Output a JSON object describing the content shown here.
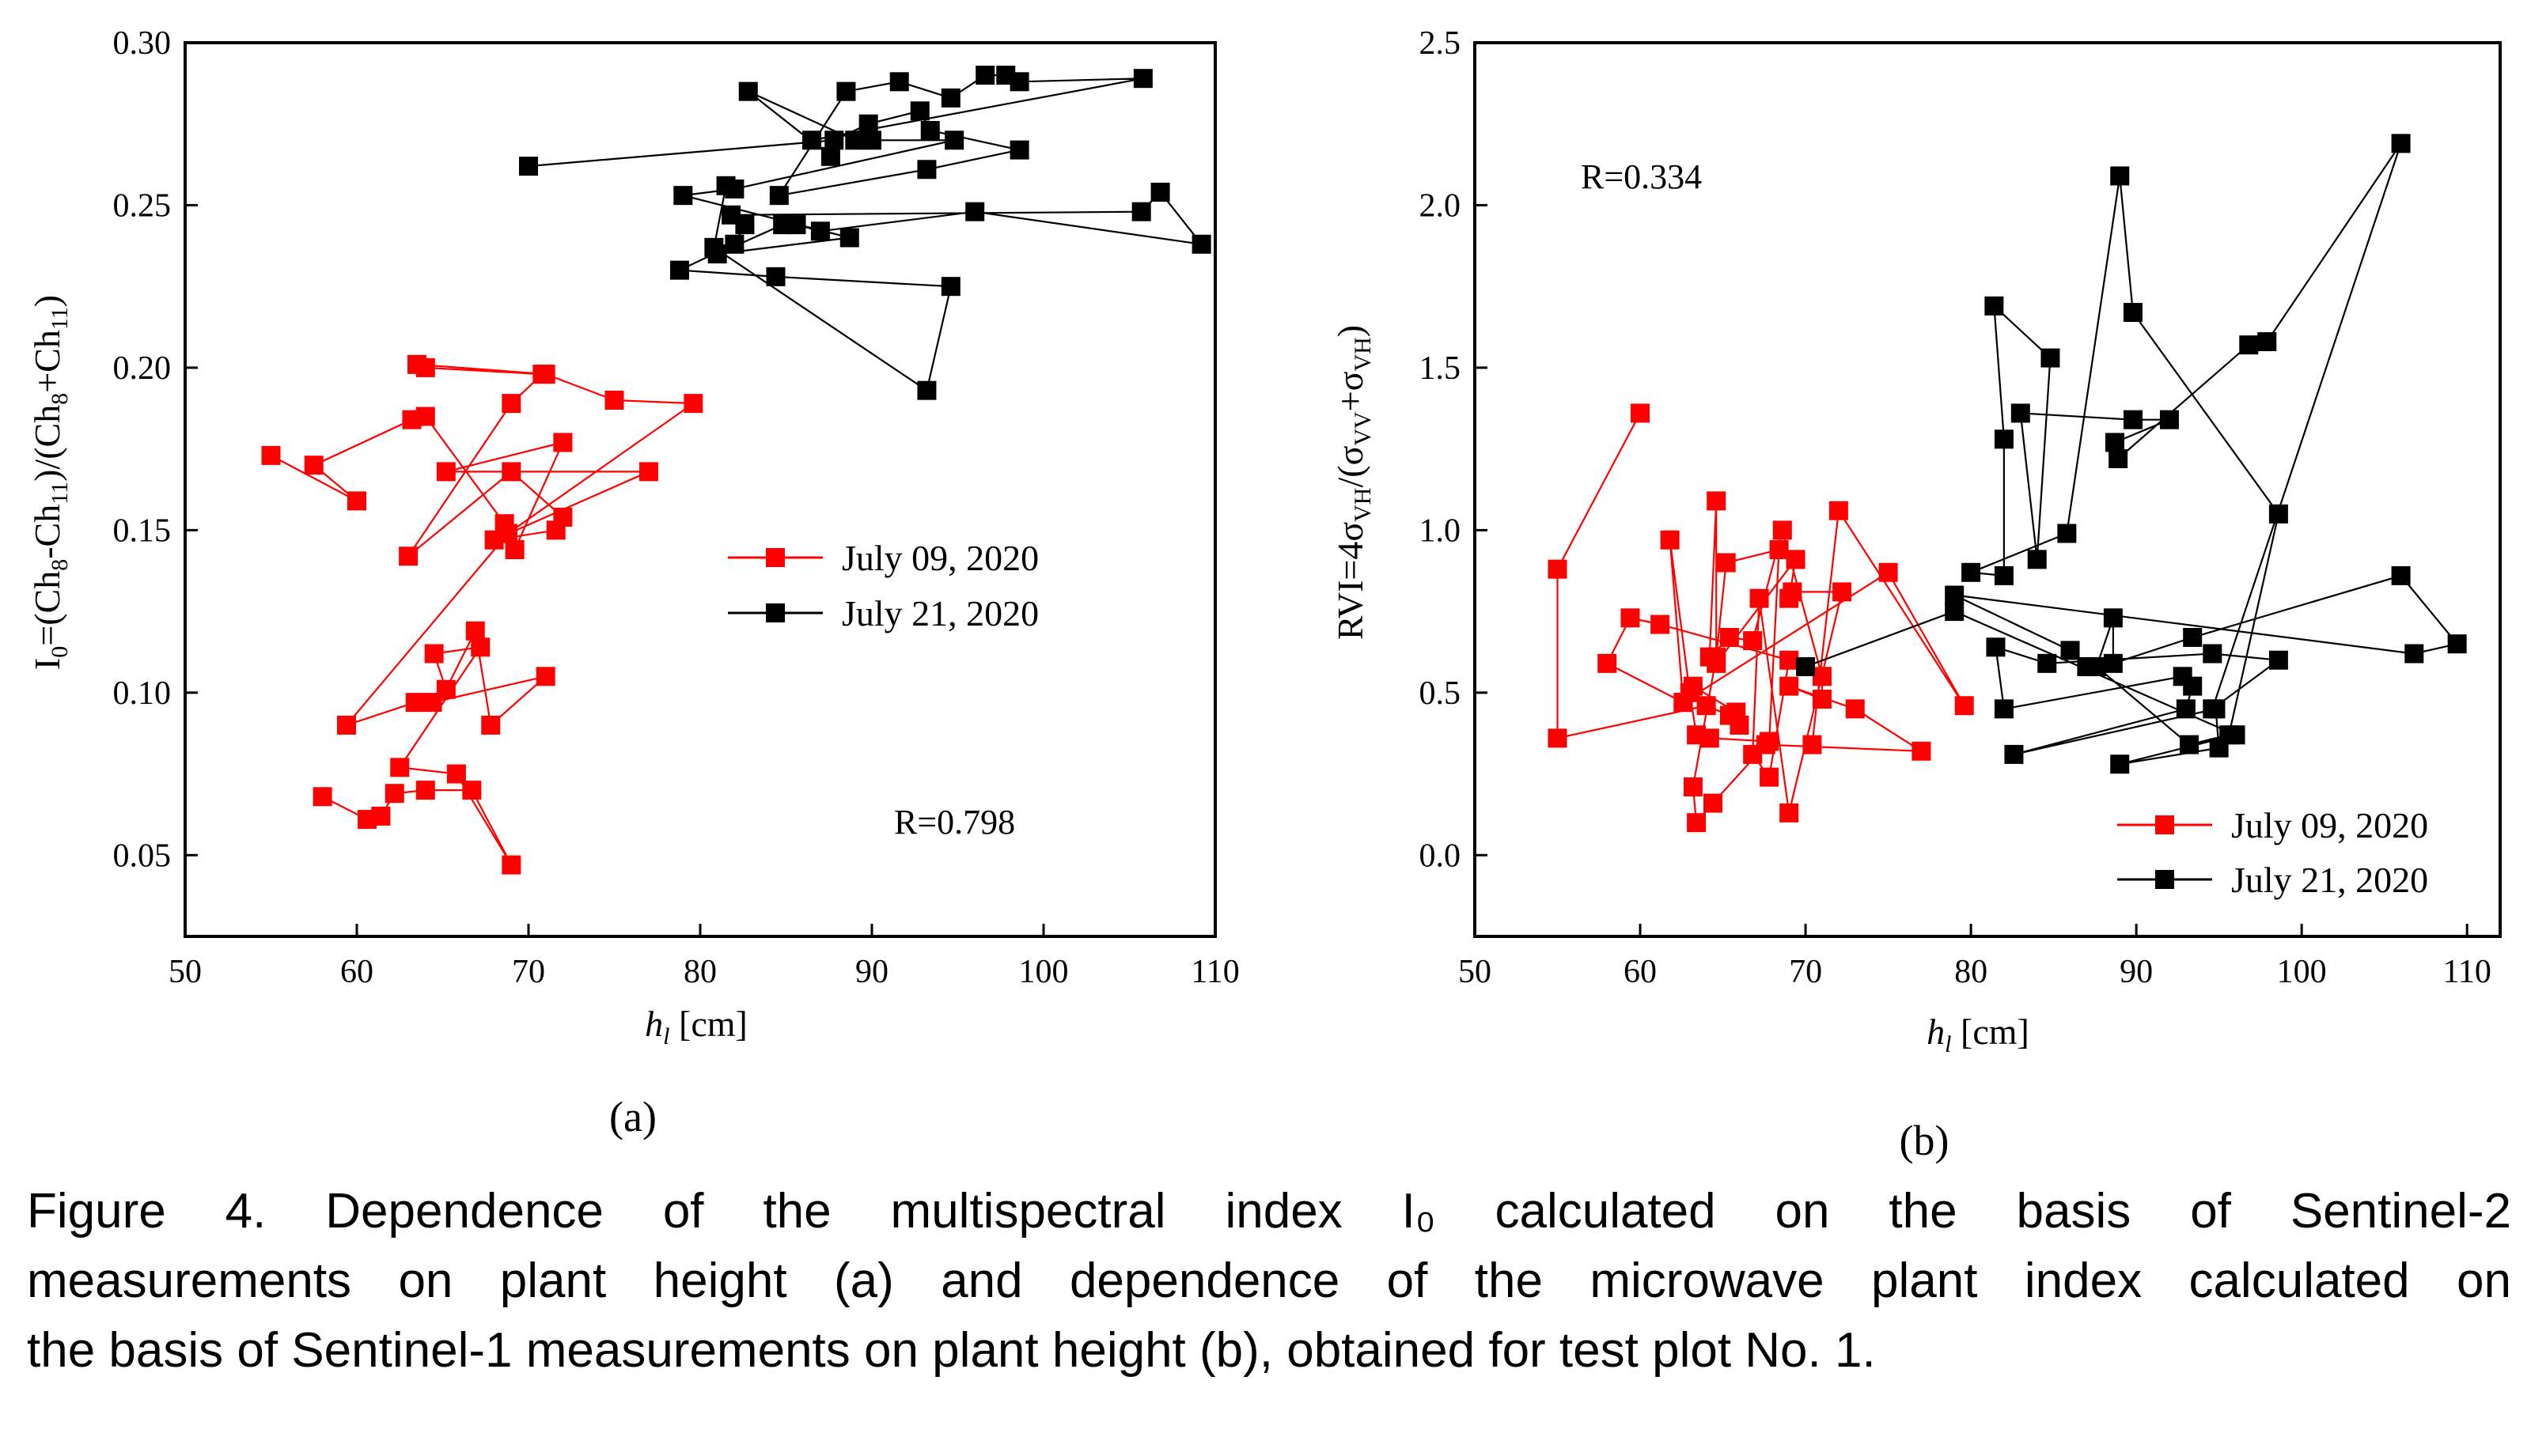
{
  "figure_caption": {
    "lines": [
      "Figure 4. Dependence of the multispectral index I₀ calculated on the basis of Sentinel-2",
      "measurements on plant height (a) and dependence of the microwave plant index calculated on",
      "the basis of Sentinel-1 measurements on plant height (b), obtained for test plot No. 1."
    ]
  },
  "colors": {
    "series_1": "#ff0000",
    "series_2": "#000000"
  },
  "chart_data": [
    {
      "panel": "(a)",
      "type": "line",
      "markers": "square",
      "xlabel": "h_l [cm]",
      "ylabel": "I_0=(Ch_8-Ch_11)/(Ch_8+Ch_11)",
      "xlim": [
        50,
        110
      ],
      "ylim": [
        0.025,
        0.3
      ],
      "xticks": [
        50,
        60,
        70,
        80,
        90,
        100,
        110
      ],
      "yticks": [
        0.05,
        0.1,
        0.15,
        0.2,
        0.25,
        0.3
      ],
      "xtick_labels": [
        "50",
        "60",
        "70",
        "80",
        "90",
        "100",
        "110"
      ],
      "ytick_labels": [
        "0.05",
        "0.10",
        "0.15",
        "0.20",
        "0.25",
        "0.30"
      ],
      "annotation": "R=0.798",
      "legend_position": "middle-right",
      "series": [
        {
          "name": "July 09, 2020",
          "color": "#ff0000",
          "points": [
            [
              55.0,
              0.173
            ],
            [
              60.0,
              0.159
            ],
            [
              57.5,
              0.17
            ],
            [
              63.2,
              0.184
            ],
            [
              64.0,
              0.185
            ],
            [
              68.6,
              0.152
            ],
            [
              69.2,
              0.144
            ],
            [
              72.0,
              0.177
            ],
            [
              65.2,
              0.168
            ],
            [
              77.0,
              0.168
            ],
            [
              68.0,
              0.147
            ],
            [
              71.6,
              0.15
            ],
            [
              72.0,
              0.154
            ],
            [
              69.0,
              0.168
            ],
            [
              63.0,
              0.142
            ],
            [
              69.0,
              0.189
            ],
            [
              70.8,
              0.198
            ],
            [
              64.0,
              0.2
            ],
            [
              63.5,
              0.201
            ],
            [
              71.0,
              0.198
            ],
            [
              75.0,
              0.19
            ],
            [
              79.6,
              0.189
            ],
            [
              68.8,
              0.149
            ],
            [
              59.4,
              0.09
            ],
            [
              63.4,
              0.097
            ],
            [
              64.4,
              0.097
            ],
            [
              71.0,
              0.105
            ],
            [
              67.8,
              0.09
            ],
            [
              66.9,
              0.119
            ],
            [
              65.2,
              0.101
            ],
            [
              64.5,
              0.112
            ],
            [
              67.2,
              0.114
            ],
            [
              62.5,
              0.077
            ],
            [
              65.8,
              0.075
            ],
            [
              69.0,
              0.047
            ],
            [
              66.7,
              0.07
            ],
            [
              64.0,
              0.07
            ],
            [
              62.2,
              0.069
            ],
            [
              61.4,
              0.062
            ],
            [
              60.6,
              0.061
            ],
            [
              58.0,
              0.068
            ]
          ]
        },
        {
          "name": "July 21, 2020",
          "color": "#000000",
          "points": [
            [
              70.0,
              0.262
            ],
            [
              87.8,
              0.27
            ],
            [
              89.8,
              0.275
            ],
            [
              92.8,
              0.279
            ],
            [
              93.4,
              0.273
            ],
            [
              98.6,
              0.267
            ],
            [
              93.2,
              0.261
            ],
            [
              84.6,
              0.253
            ],
            [
              88.5,
              0.285
            ],
            [
              91.6,
              0.288
            ],
            [
              94.6,
              0.283
            ],
            [
              96.6,
              0.29
            ],
            [
              97.8,
              0.29
            ],
            [
              98.6,
              0.288
            ],
            [
              105.8,
              0.289
            ],
            [
              86.5,
              0.27
            ],
            [
              87.6,
              0.265
            ],
            [
              82.8,
              0.285
            ],
            [
              89.0,
              0.27
            ],
            [
              90.0,
              0.27
            ],
            [
              94.8,
              0.27
            ],
            [
              82.0,
              0.255
            ],
            [
              79.0,
              0.253
            ],
            [
              88.7,
              0.24
            ],
            [
              81.0,
              0.235
            ],
            [
              84.8,
              0.244
            ],
            [
              85.6,
              0.244
            ],
            [
              87.0,
              0.242
            ],
            [
              96.0,
              0.248
            ],
            [
              109.2,
              0.238
            ],
            [
              106.8,
              0.254
            ],
            [
              105.7,
              0.248
            ],
            [
              81.8,
              0.247
            ],
            [
              82.6,
              0.244
            ],
            [
              82.0,
              0.238
            ],
            [
              78.8,
              0.23
            ],
            [
              84.4,
              0.228
            ],
            [
              94.6,
              0.225
            ],
            [
              93.2,
              0.193
            ],
            [
              80.8,
              0.237
            ],
            [
              81.5,
              0.256
            ]
          ]
        }
      ]
    },
    {
      "panel": "(b)",
      "type": "line",
      "markers": "square",
      "xlabel": "h_l [cm]",
      "ylabel": "RVI=4σ_VH/(σ_VV+σ_VH)",
      "xlim": [
        50,
        112
      ],
      "ylim": [
        -0.25,
        2.5
      ],
      "xticks": [
        50,
        60,
        70,
        80,
        90,
        100,
        110
      ],
      "yticks": [
        0.0,
        0.5,
        1.0,
        1.5,
        2.0,
        2.5
      ],
      "xtick_labels": [
        "50",
        "60",
        "70",
        "80",
        "90",
        "100",
        "110"
      ],
      "ytick_labels": [
        "0.0",
        "0.5",
        "1.0",
        "1.5",
        "2.0",
        "2.5"
      ],
      "annotation": "R=0.334",
      "legend_position": "bottom-right",
      "series": [
        {
          "name": "July 09, 2020",
          "color": "#ff0000",
          "points": [
            [
              60.0,
              1.36
            ],
            [
              55.0,
              0.88
            ],
            [
              55.0,
              0.36
            ],
            [
              64.0,
              0.46
            ],
            [
              65.4,
              0.43
            ],
            [
              66.0,
              0.4
            ],
            [
              65.8,
              0.44
            ],
            [
              63.2,
              0.52
            ],
            [
              62.6,
              0.47
            ],
            [
              61.8,
              0.97
            ],
            [
              63.0,
              0.5
            ],
            [
              63.4,
              0.37
            ],
            [
              64.2,
              0.36
            ],
            [
              67.8,
              0.35
            ],
            [
              68.4,
              0.94
            ],
            [
              65.2,
              0.9
            ],
            [
              64.6,
              0.61
            ],
            [
              63.2,
              0.21
            ],
            [
              63.4,
              0.1
            ],
            [
              64.4,
              0.16
            ],
            [
              67.6,
              0.34
            ],
            [
              77.0,
              0.32
            ],
            [
              73.0,
              0.45
            ],
            [
              69.0,
              0.52
            ],
            [
              71.0,
              0.48
            ],
            [
              71.0,
              0.55
            ],
            [
              68.6,
              1.0
            ],
            [
              66.8,
              0.66
            ],
            [
              65.4,
              0.67
            ],
            [
              64.2,
              0.61
            ],
            [
              64.6,
              1.09
            ],
            [
              64.6,
              0.59
            ],
            [
              69.4,
              0.91
            ],
            [
              69.0,
              0.79
            ],
            [
              69.2,
              0.81
            ],
            [
              72.2,
              0.81
            ],
            [
              69.0,
              0.13
            ],
            [
              67.2,
              0.79
            ],
            [
              66.8,
              0.31
            ],
            [
              67.8,
              0.24
            ],
            [
              69.0,
              0.6
            ],
            [
              61.2,
              0.71
            ],
            [
              59.4,
              0.73
            ],
            [
              58.0,
              0.59
            ],
            [
              62.6,
              0.47
            ],
            [
              75.0,
              0.87
            ],
            [
              79.6,
              0.46
            ],
            [
              72.0,
              1.06
            ],
            [
              70.4,
              0.34
            ]
          ]
        },
        {
          "name": "July 21, 2020",
          "color": "#000000",
          "points": [
            [
              70.0,
              0.58
            ],
            [
              79.0,
              0.75
            ],
            [
              96.0,
              0.37
            ],
            [
              89.0,
              0.28
            ],
            [
              95.0,
              0.33
            ],
            [
              94.8,
              0.45
            ],
            [
              82.6,
              0.31
            ],
            [
              93.0,
              0.45
            ],
            [
              93.4,
              0.52
            ],
            [
              92.8,
              0.55
            ],
            [
              82.0,
              0.45
            ],
            [
              81.5,
              0.64
            ],
            [
              84.6,
              0.59
            ],
            [
              94.6,
              0.62
            ],
            [
              98.6,
              0.6
            ],
            [
              94.6,
              0.45
            ],
            [
              106.0,
              2.19
            ],
            [
              97.9,
              1.58
            ],
            [
              96.8,
              1.57
            ],
            [
              88.9,
              1.22
            ],
            [
              88.7,
              1.27
            ],
            [
              92.0,
              1.34
            ],
            [
              89.8,
              1.34
            ],
            [
              83.0,
              1.36
            ],
            [
              84.0,
              0.91
            ],
            [
              84.8,
              1.53
            ],
            [
              81.4,
              1.69
            ],
            [
              82.0,
              1.28
            ],
            [
              82.0,
              0.86
            ],
            [
              80.0,
              0.87
            ],
            [
              85.8,
              0.99
            ],
            [
              89.0,
              2.09
            ],
            [
              89.8,
              1.67
            ],
            [
              98.6,
              1.05
            ],
            [
              95.6,
              0.37
            ],
            [
              93.2,
              0.34
            ],
            [
              87.6,
              0.58
            ],
            [
              88.6,
              0.73
            ],
            [
              88.6,
              0.59
            ],
            [
              93.4,
              0.67
            ],
            [
              106.0,
              0.86
            ],
            [
              109.4,
              0.65
            ],
            [
              106.8,
              0.62
            ],
            [
              79.0,
              0.8
            ],
            [
              86.0,
              0.63
            ],
            [
              87.0,
              0.58
            ]
          ]
        }
      ]
    }
  ],
  "panels": {
    "a": {
      "label": "(a)",
      "annotation": "R=0.798",
      "xlabel_italic": "h",
      "xlabel_sub": "l",
      "xlabel_unit": " [cm]",
      "ylabel_parts": [
        "I",
        "0",
        "=(Ch",
        "8",
        "-Ch",
        "11",
        ")/(Ch",
        "8",
        "+Ch",
        "11",
        ")"
      ],
      "legend": [
        "July 09, 2020",
        "July 21, 2020"
      ]
    },
    "b": {
      "label": "(b)",
      "annotation": "R=0.334",
      "xlabel_italic": "h",
      "xlabel_sub": "l",
      "xlabel_unit": " [cm]",
      "ylabel_parts": [
        "RVI=4σ",
        "VH",
        "/(σ",
        "VV",
        "+σ",
        "VH",
        ")"
      ],
      "legend": [
        "July 09, 2020",
        "July 21, 2020"
      ]
    }
  }
}
